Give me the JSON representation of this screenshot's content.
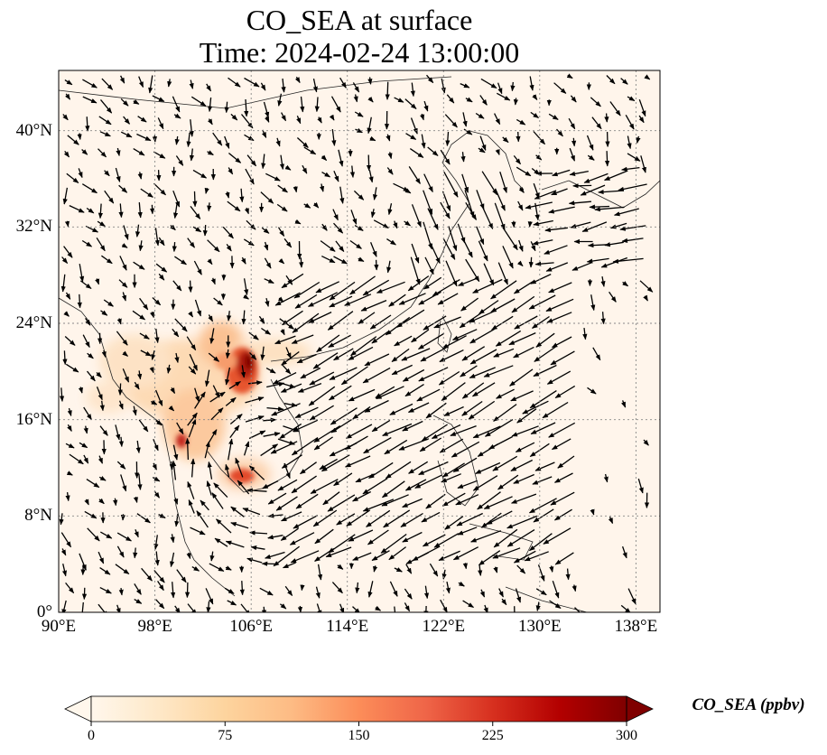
{
  "title_line1": "CO_SEA at surface",
  "title_line2": "Time: 2024-02-24 13:00:00",
  "map": {
    "lon_range": [
      90,
      140
    ],
    "lat_range": [
      0,
      45
    ],
    "x_ticks": [
      {
        "lon": 90,
        "label": "90°E"
      },
      {
        "lon": 98,
        "label": "98°E"
      },
      {
        "lon": 106,
        "label": "106°E"
      },
      {
        "lon": 114,
        "label": "114°E"
      },
      {
        "lon": 122,
        "label": "122°E"
      },
      {
        "lon": 130,
        "label": "130°E"
      },
      {
        "lon": 138,
        "label": "138°E"
      }
    ],
    "y_ticks": [
      {
        "lat": 0,
        "label": "0°"
      },
      {
        "lat": 8,
        "label": "8°N"
      },
      {
        "lat": 16,
        "label": "16°N"
      },
      {
        "lat": 24,
        "label": "24°N"
      },
      {
        "lat": 32,
        "label": "32°N"
      },
      {
        "lat": 40,
        "label": "40°N"
      }
    ],
    "gridlines": "dotted",
    "background_color": "#fff5eb",
    "wind_vectors": "black quiver arrows"
  },
  "colorbar": {
    "label": "CO_SEA (ppbv)",
    "colormap": "OrRd",
    "colors": [
      "#fff7ec",
      "#fee8c8",
      "#fdd49e",
      "#fdbb84",
      "#fc8d59",
      "#ef6548",
      "#d7301f",
      "#b30000",
      "#7f0000"
    ],
    "extend": "both",
    "range": [
      0,
      300
    ],
    "ticks": [
      {
        "value": 0,
        "label": "0"
      },
      {
        "value": 75,
        "label": "75"
      },
      {
        "value": 150,
        "label": "150"
      },
      {
        "value": 225,
        "label": "225"
      },
      {
        "value": 300,
        "label": "300"
      }
    ]
  }
}
